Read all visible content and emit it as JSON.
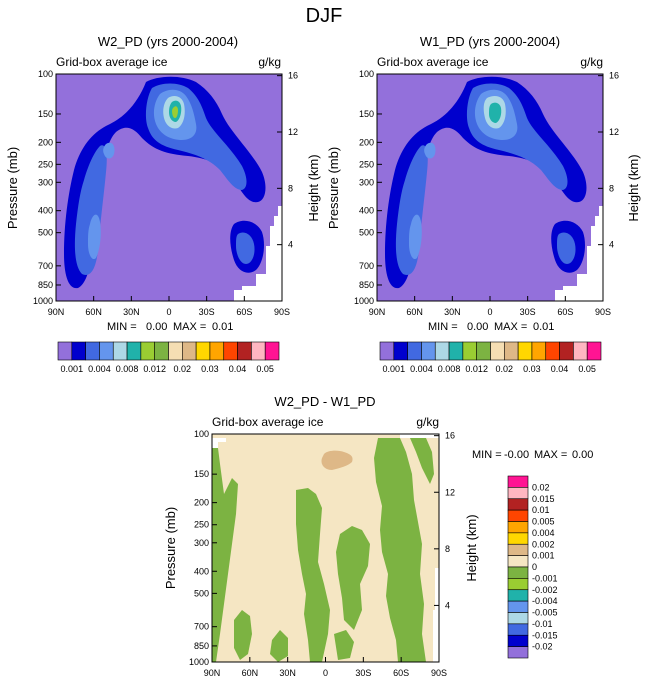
{
  "title": "DJF",
  "colors": {
    "background_purple": "#9370db",
    "outline_gray": "#000000"
  },
  "chart_data": [
    {
      "type": "heatmap",
      "id": "w2",
      "title": "W2_PD (yrs 2000-2004)",
      "left_label": "Grid-box average ice",
      "right_label": "g/kg",
      "ylabel": "Pressure (mb)",
      "ylabel_right": "Height (km)",
      "x_ticks": [
        "90N",
        "60N",
        "30N",
        "0",
        "30S",
        "60S",
        "90S"
      ],
      "y_ticks": [
        "100",
        "150",
        "200",
        "250",
        "300",
        "400",
        "500",
        "700",
        "850",
        "1000"
      ],
      "y_ticks_right": [
        "16",
        "12",
        "8",
        "4"
      ],
      "stats": {
        "min_label": "MIN =",
        "min_value": "0.00",
        "max_label": "MAX =",
        "max_value": "0.01"
      },
      "colorbar_labels": [
        "0.001",
        "0.004",
        "0.008",
        "0.012",
        "0.02",
        "0.03",
        "0.04",
        "0.05"
      ],
      "colorbar_colors": [
        "#9370db",
        "#0000cd",
        "#4169e1",
        "#6495ed",
        "#add8e6",
        "#20b2aa",
        "#9acd32",
        "#7cb342",
        "#f5deb3",
        "#deb887",
        "#ffd700",
        "#ffa500",
        "#ff4500",
        "#b22222",
        "#ffb6c1",
        "#ff1493"
      ]
    },
    {
      "type": "heatmap",
      "id": "w1",
      "title": "W1_PD (yrs 2000-2004)",
      "left_label": "Grid-box average ice",
      "right_label": "g/kg",
      "ylabel": "Pressure (mb)",
      "ylabel_right": "Height (km)",
      "x_ticks": [
        "90N",
        "60N",
        "30N",
        "0",
        "30S",
        "60S",
        "90S"
      ],
      "y_ticks": [
        "100",
        "150",
        "200",
        "250",
        "300",
        "400",
        "500",
        "700",
        "850",
        "1000"
      ],
      "y_ticks_right": [
        "16",
        "12",
        "8",
        "4"
      ],
      "stats": {
        "min_label": "MIN =",
        "min_value": "0.00",
        "max_label": "MAX =",
        "max_value": "0.01"
      },
      "colorbar_labels": [
        "0.001",
        "0.004",
        "0.008",
        "0.012",
        "0.02",
        "0.03",
        "0.04",
        "0.05"
      ],
      "colorbar_colors": [
        "#9370db",
        "#0000cd",
        "#4169e1",
        "#6495ed",
        "#add8e6",
        "#20b2aa",
        "#9acd32",
        "#7cb342",
        "#f5deb3",
        "#deb887",
        "#ffd700",
        "#ffa500",
        "#ff4500",
        "#b22222",
        "#ffb6c1",
        "#ff1493"
      ]
    },
    {
      "type": "heatmap",
      "id": "diff",
      "title": "W2_PD - W1_PD",
      "left_label": "Grid-box average ice",
      "right_label": "g/kg",
      "ylabel": "Pressure (mb)",
      "ylabel_right": "Height (km)",
      "x_ticks": [
        "90N",
        "60N",
        "30N",
        "0",
        "30S",
        "60S",
        "90S"
      ],
      "y_ticks": [
        "100",
        "150",
        "200",
        "250",
        "300",
        "400",
        "500",
        "700",
        "850",
        "1000"
      ],
      "y_ticks_right": [
        "16",
        "12",
        "8",
        "4"
      ],
      "stats": {
        "min_label": "MIN =",
        "min_value": "-0.00",
        "max_label": "MAX =",
        "max_value": "0.00"
      },
      "colorbar_labels": [
        "0.02",
        "0.015",
        "0.01",
        "0.005",
        "0.004",
        "0.002",
        "0.001",
        "0",
        "-0.001",
        "-0.002",
        "-0.004",
        "-0.005",
        "-0.01",
        "-0.015",
        "-0.02"
      ],
      "colorbar_colors": [
        "#ff1493",
        "#ffb6c1",
        "#b22222",
        "#ff4500",
        "#ffa500",
        "#ffd700",
        "#deb887",
        "#f5e6c3",
        "#7cb342",
        "#9acd32",
        "#20b2aa",
        "#6495ed",
        "#add8e6",
        "#4169e1",
        "#0000cd",
        "#9370db"
      ]
    }
  ]
}
